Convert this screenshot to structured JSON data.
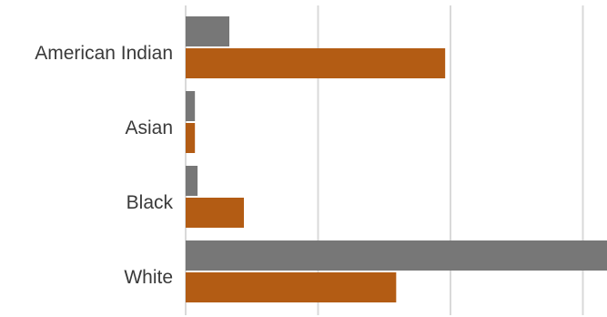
{
  "chart_data": {
    "type": "bar",
    "orientation": "horizontal",
    "categories": [
      "American Indian",
      "Asian",
      "Black",
      "White"
    ],
    "series": [
      {
        "color": "#777777",
        "values": [
          0.33,
          0.07,
          0.09,
          3.2
        ]
      },
      {
        "color": "#b35c14",
        "values": [
          1.96,
          0.07,
          0.44,
          1.59
        ]
      }
    ],
    "xlim": [
      0,
      3.2
    ],
    "gridlines": [
      0,
      1,
      2,
      3
    ],
    "grid": true,
    "legend": "none"
  }
}
